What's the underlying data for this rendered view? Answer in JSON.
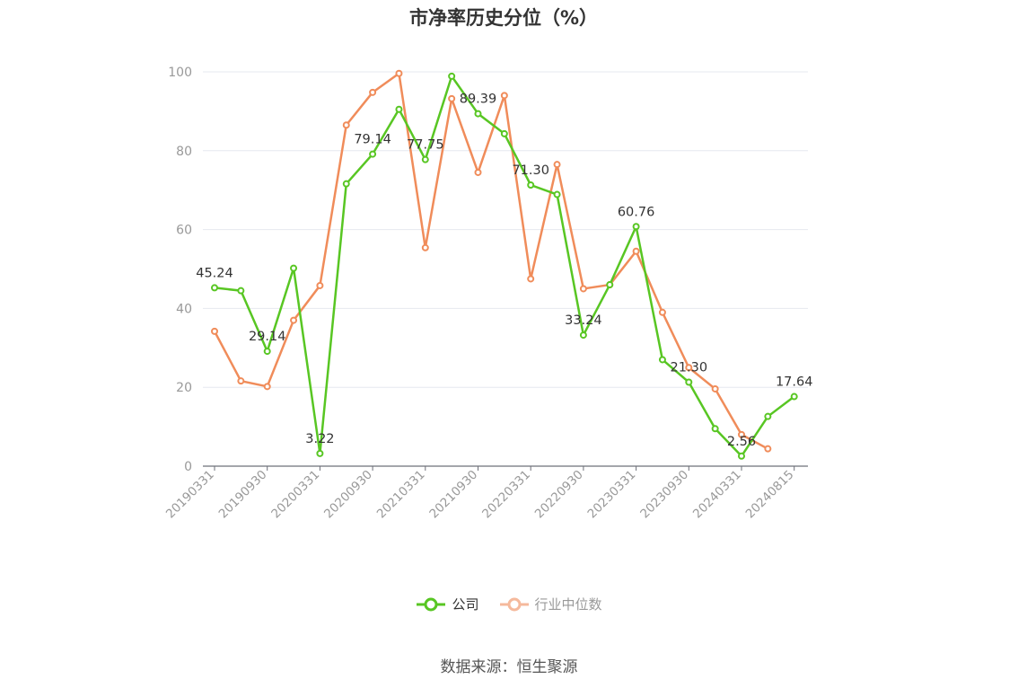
{
  "title": "市净率历史分位（%）",
  "source": "数据来源：恒生聚源",
  "colors": {
    "company": "#58c623",
    "industry": "#f08c5a",
    "industry_legend": "#f5b99c",
    "grid": "#e6e8ef",
    "axis": "#6e7079",
    "label": "#999999"
  },
  "chart_data": {
    "type": "line",
    "title": "市净率历史分位（%）",
    "xlabel": "",
    "ylabel": "",
    "ylim": [
      0,
      100
    ],
    "yticks": [
      0,
      20,
      40,
      60,
      80,
      100
    ],
    "grid": true,
    "legend_position": "bottom",
    "x": [
      "20190331",
      "20190630",
      "20190930",
      "20191231",
      "20200331",
      "20200630",
      "20200930",
      "20201231",
      "20210331",
      "20210630",
      "20210930",
      "20211231",
      "20220331",
      "20220630",
      "20220930",
      "20221231",
      "20230331",
      "20230630",
      "20230930",
      "20231231",
      "20240331",
      "20240630",
      "20240815"
    ],
    "x_tick_labels": [
      "20190331",
      "20190930",
      "20200331",
      "20200930",
      "20210331",
      "20210930",
      "20220331",
      "20220930",
      "20230331",
      "20230930",
      "20240331",
      "20240815"
    ],
    "series": [
      {
        "name": "公司",
        "values": [
          45.24,
          44.5,
          29.14,
          50.2,
          3.22,
          71.6,
          79.14,
          90.5,
          77.75,
          98.9,
          89.39,
          84.3,
          71.3,
          68.9,
          33.24,
          46.0,
          60.76,
          27.0,
          21.3,
          9.5,
          2.56,
          12.6,
          17.64
        ],
        "data_labels": {
          "0": "45.24",
          "2": "29.14",
          "4": "3.22",
          "6": "79.14",
          "8": "77.75",
          "10": "89.39",
          "12": "71.30",
          "14": "33.24",
          "16": "60.76",
          "18": "21.30",
          "20": "2.56",
          "22": "17.64"
        }
      },
      {
        "name": "行业中位数",
        "values": [
          34.2,
          21.6,
          20.2,
          37.0,
          45.8,
          86.5,
          94.8,
          99.6,
          55.4,
          93.2,
          74.5,
          94.0,
          47.5,
          76.5,
          45.0,
          46.0,
          54.5,
          39.0,
          25.0,
          19.6,
          8.0,
          4.4,
          null
        ]
      }
    ]
  }
}
